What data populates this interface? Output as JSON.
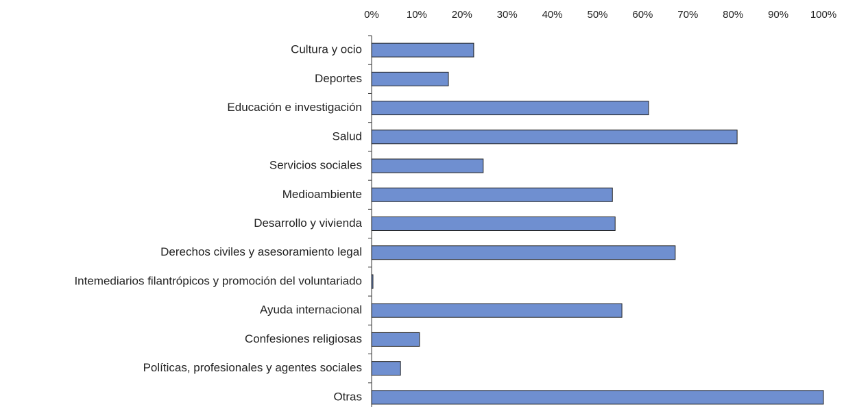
{
  "chart_data": {
    "type": "bar",
    "orientation": "horizontal",
    "categories": [
      "Cultura y ocio",
      "Deportes",
      "Educación e investigación",
      "Salud",
      "Servicios sociales",
      "Medioambiente",
      "Desarrollo y vivienda",
      "Derechos civiles y asesoramiento legal",
      "Intemediarios filantrópicos y promoción del voluntariado",
      "Ayuda internacional",
      "Confesiones religiosas",
      "Políticas, profesionales y agentes sociales",
      "Otras"
    ],
    "values": [
      22.6,
      17.0,
      61.3,
      80.9,
      24.7,
      53.3,
      53.9,
      67.2,
      0.3,
      55.4,
      10.6,
      6.4,
      100
    ],
    "color": "#6f8fd0",
    "xlim": [
      0,
      100
    ],
    "xticks": [
      {
        "value": 0,
        "label": "0%"
      },
      {
        "value": 10,
        "label": "10%"
      },
      {
        "value": 20,
        "label": "20%"
      },
      {
        "value": 30,
        "label": "30%"
      },
      {
        "value": 40,
        "label": "40%"
      },
      {
        "value": 50,
        "label": "50%"
      },
      {
        "value": 60,
        "label": "60%"
      },
      {
        "value": 70,
        "label": "70%"
      },
      {
        "value": 80,
        "label": "80%"
      },
      {
        "value": 90,
        "label": "90%"
      },
      {
        "value": 100,
        "label": "100%"
      }
    ],
    "grid": false
  }
}
